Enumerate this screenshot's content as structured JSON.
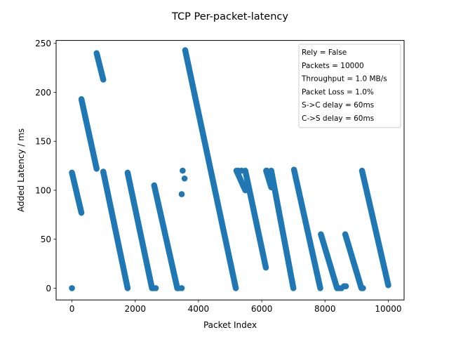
{
  "chart_data": {
    "type": "scatter",
    "title": "TCP Per-packet-latency",
    "xlabel": "Packet Index",
    "ylabel": "Added Latency / ms",
    "xlim": [
      -500,
      10500
    ],
    "ylim": [
      -12,
      253
    ],
    "xticks": [
      0,
      2000,
      4000,
      6000,
      8000,
      10000
    ],
    "yticks": [
      0,
      50,
      100,
      150,
      200,
      250
    ],
    "grid": false,
    "legend_placement": "top-right",
    "marker_color": "#1f77b4",
    "annotations": [
      "Rely = False",
      "Packets = 10000",
      "Throughput = 1.0 MB/s",
      "Packet Loss = 1.0%",
      "S->C delay = 60ms",
      "C->S delay = 60ms"
    ],
    "segments": [
      {
        "x": [
          0,
          300
        ],
        "y": [
          118,
          77
        ]
      },
      {
        "x": [
          300,
          780
        ],
        "y": [
          193,
          122
        ]
      },
      {
        "x": [
          780,
          990
        ],
        "y": [
          240,
          213
        ]
      },
      {
        "x": [
          990,
          1760
        ],
        "y": [
          119,
          0
        ]
      },
      {
        "x": [
          1760,
          2530
        ],
        "y": [
          118,
          0
        ]
      },
      {
        "x": [
          2600,
          3330
        ],
        "y": [
          105,
          0
        ]
      },
      {
        "x": [
          3580,
          5180
        ],
        "y": [
          243,
          0
        ]
      },
      {
        "x": [
          5200,
          5480
        ],
        "y": [
          120,
          100
        ]
      },
      {
        "x": [
          5480,
          6130
        ],
        "y": [
          120,
          21
        ]
      },
      {
        "x": [
          6140,
          6300
        ],
        "y": [
          120,
          103
        ]
      },
      {
        "x": [
          6300,
          7000
        ],
        "y": [
          120,
          0
        ]
      },
      {
        "x": [
          7020,
          7850
        ],
        "y": [
          121,
          0
        ]
      },
      {
        "x": [
          7870,
          8380
        ],
        "y": [
          55,
          0
        ]
      },
      {
        "x": [
          8640,
          9150
        ],
        "y": [
          55,
          0
        ]
      },
      {
        "x": [
          9170,
          10000
        ],
        "y": [
          120,
          3
        ]
      }
    ],
    "points": [
      {
        "x": 0,
        "y": 0
      },
      {
        "x": 2570,
        "y": 0
      },
      {
        "x": 2650,
        "y": 0
      },
      {
        "x": 3370,
        "y": 0
      },
      {
        "x": 3470,
        "y": 0
      },
      {
        "x": 3470,
        "y": 96
      },
      {
        "x": 3500,
        "y": 120
      },
      {
        "x": 3560,
        "y": 112
      },
      {
        "x": 5250,
        "y": 120
      },
      {
        "x": 5360,
        "y": 120
      },
      {
        "x": 6160,
        "y": 120
      },
      {
        "x": 8450,
        "y": 0
      },
      {
        "x": 8520,
        "y": 0
      },
      {
        "x": 8600,
        "y": 2
      },
      {
        "x": 8660,
        "y": 2
      },
      {
        "x": 9200,
        "y": 0
      }
    ]
  }
}
